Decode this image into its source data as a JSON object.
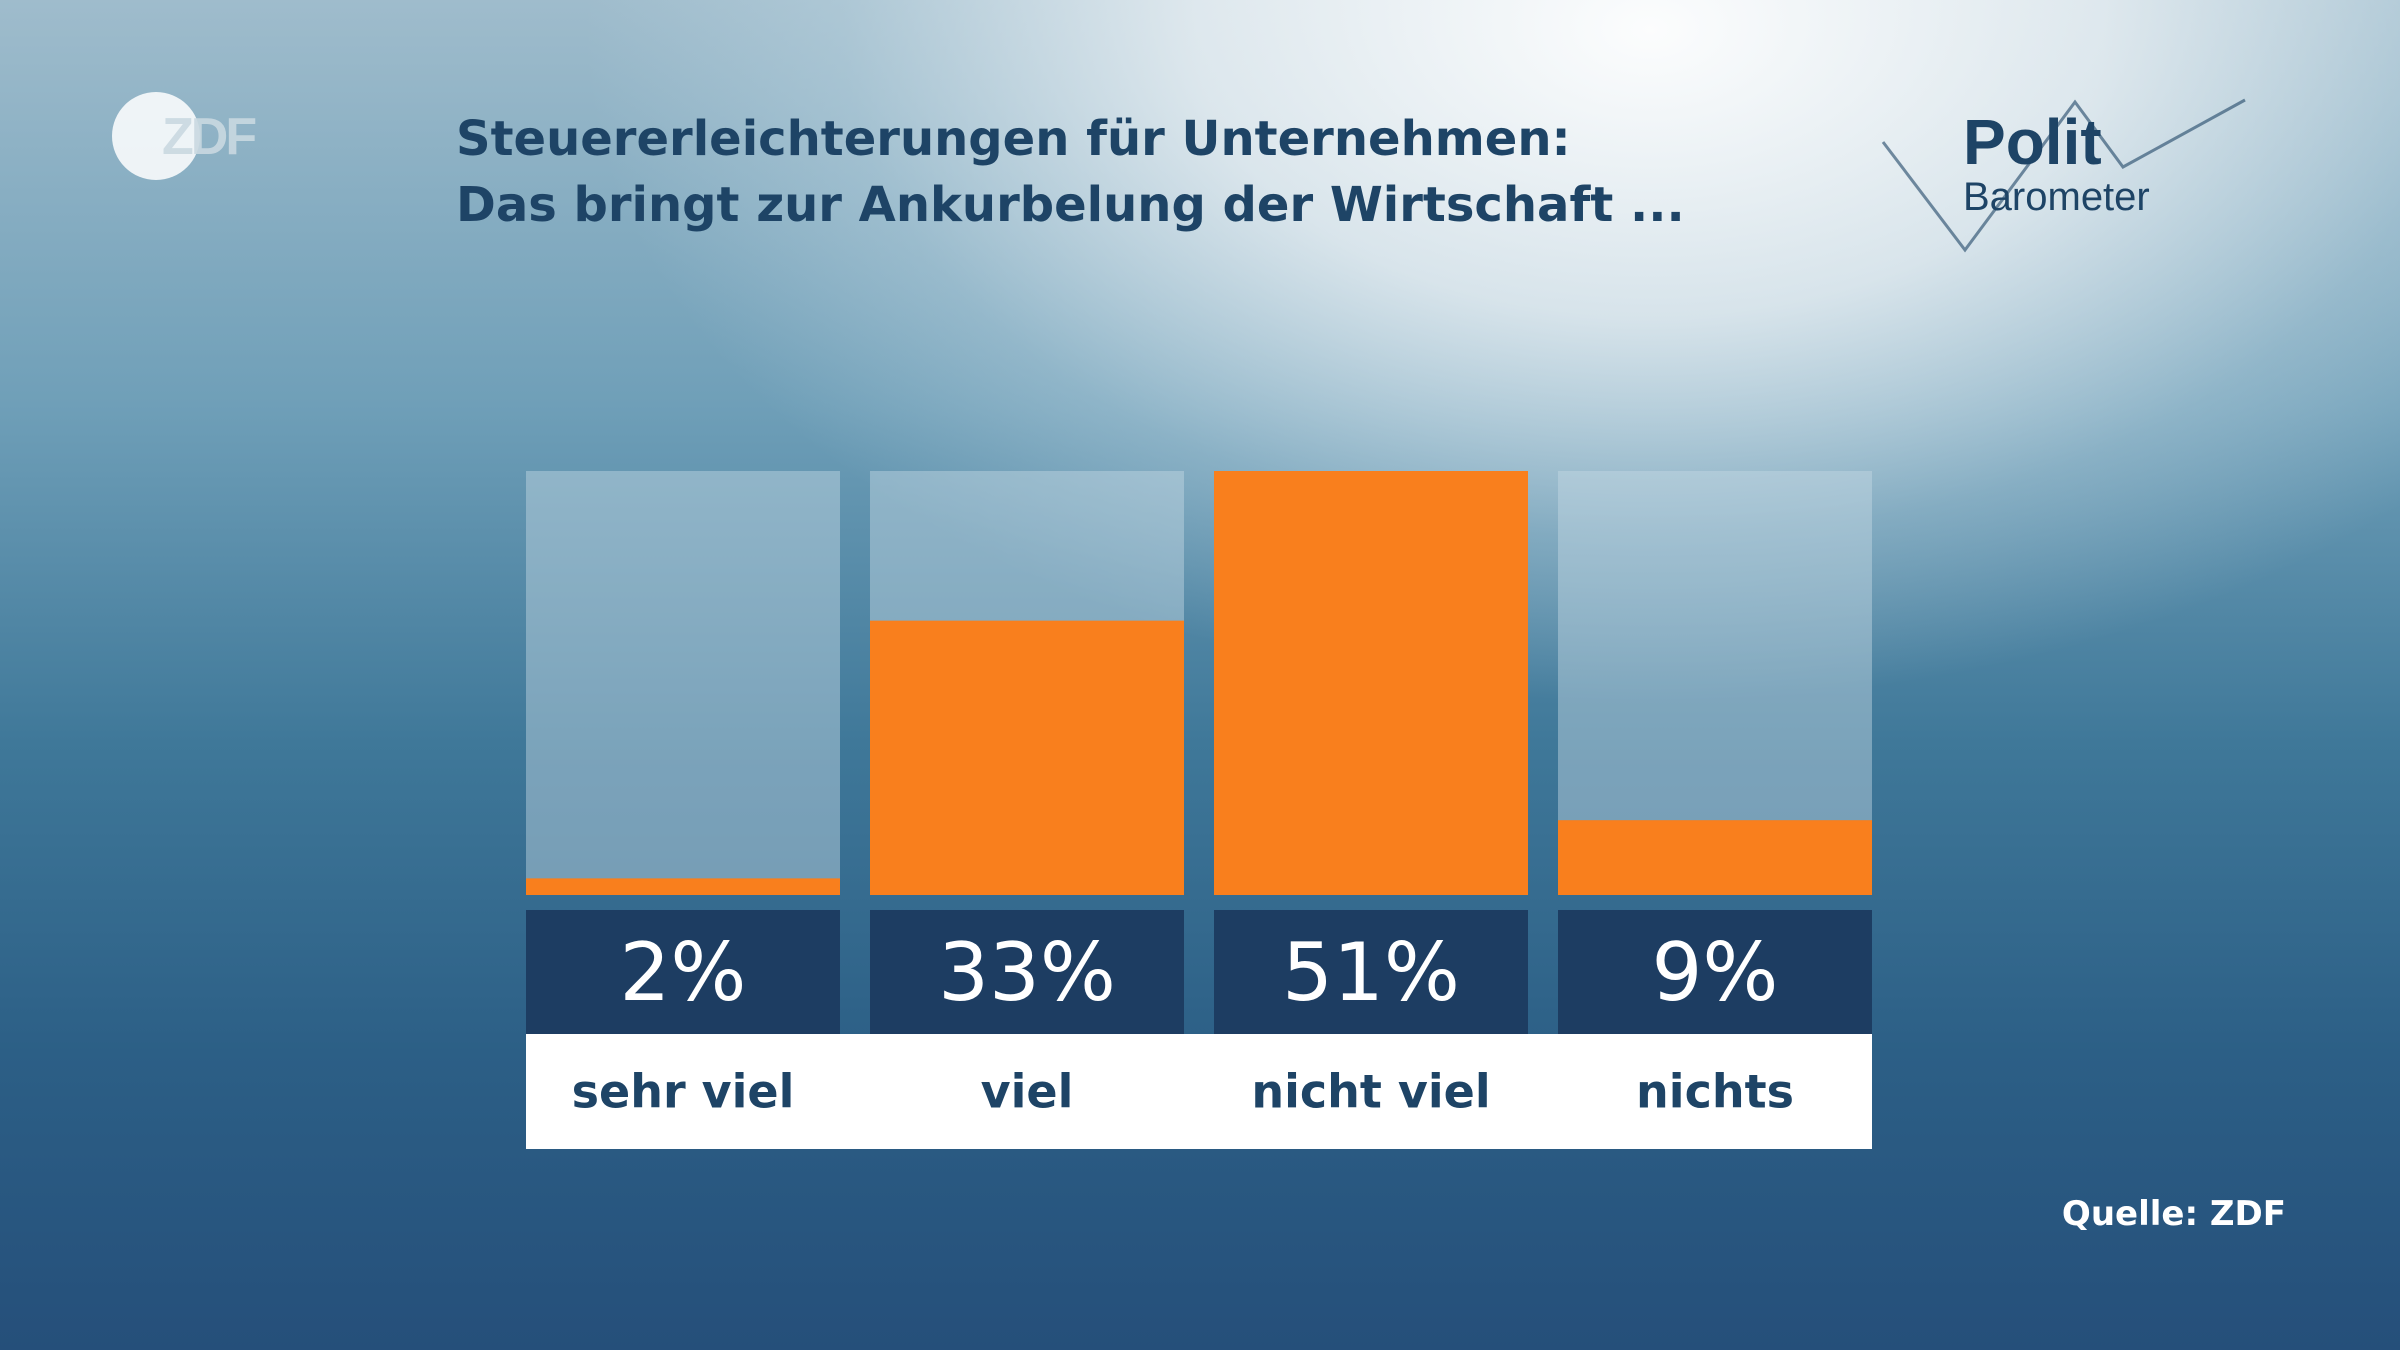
{
  "branding": {
    "logo": "ZDF",
    "series_logo": {
      "line1": "Polit",
      "line2": "Barometer"
    }
  },
  "title": {
    "line1": "Steuererleichterungen für Unternehmen:",
    "line2": "Das bringt zur Ankurbelung der Wirtschaft ..."
  },
  "source": "Quelle: ZDF",
  "colors": {
    "bar": "#f97f1d",
    "track": "#c6dae5",
    "value_box": "#1d3d62",
    "label_box": "#ffffff",
    "text_dark": "#1e4466"
  },
  "chart_data": {
    "type": "bar",
    "title": "Steuererleichterungen für Unternehmen: Das bringt zur Ankurbelung der Wirtschaft ...",
    "categories": [
      "sehr viel",
      "viel",
      "nicht viel",
      "nichts"
    ],
    "values": [
      2,
      33,
      51,
      9
    ],
    "value_labels": [
      "2%",
      "33%",
      "51%",
      "9%"
    ],
    "unit": "%",
    "ylim": [
      0,
      51
    ],
    "grid": false,
    "legend": "none"
  }
}
